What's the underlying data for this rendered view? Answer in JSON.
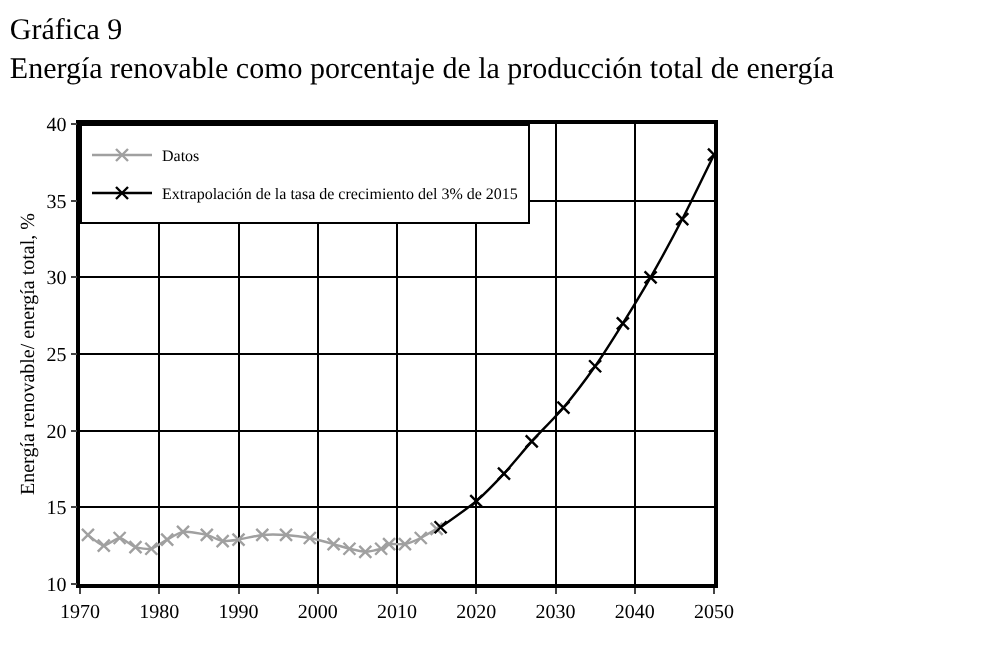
{
  "chart_data": {
    "type": "line",
    "title": "Gráfica 9",
    "subtitle": "Energía renovable como porcentaje de la producción total de energía",
    "ylabel": "Energía renovable/ energía total, %",
    "series": [
      {
        "name": "Datos",
        "color": "#a0a0a0",
        "marker": "cross",
        "x": [
          1971,
          1973,
          1975,
          1977,
          1979,
          1981,
          1983,
          1986,
          1988,
          1990,
          1993,
          1996,
          1999,
          2002,
          2004,
          2006,
          2008,
          2009,
          2011,
          2013,
          2015
        ],
        "values": [
          13.2,
          12.5,
          13.0,
          12.4,
          12.3,
          12.9,
          13.4,
          13.2,
          12.8,
          12.9,
          13.2,
          13.2,
          13.0,
          12.6,
          12.3,
          12.1,
          12.3,
          12.6,
          12.6,
          13.0,
          13.6
        ]
      },
      {
        "name": "Extrapolación de la tasa de crecimiento del 3% de 2015",
        "color": "#000000",
        "marker": "cross",
        "x": [
          2015.5,
          2020,
          2023.5,
          2027,
          2031,
          2035,
          2038.5,
          2042,
          2046,
          2050
        ],
        "values": [
          13.7,
          15.4,
          17.2,
          19.3,
          21.5,
          24.2,
          27.0,
          30.0,
          33.8,
          38.0
        ]
      }
    ],
    "xlim": [
      1970,
      2050
    ],
    "xticks": [
      1970,
      1980,
      1990,
      2000,
      2010,
      2020,
      2030,
      2040,
      2050
    ],
    "ylim": [
      10,
      40
    ],
    "yticks": [
      10,
      15,
      20,
      25,
      30,
      35,
      40
    ],
    "grid": true,
    "legend": "top left",
    "line_style": "solid"
  }
}
